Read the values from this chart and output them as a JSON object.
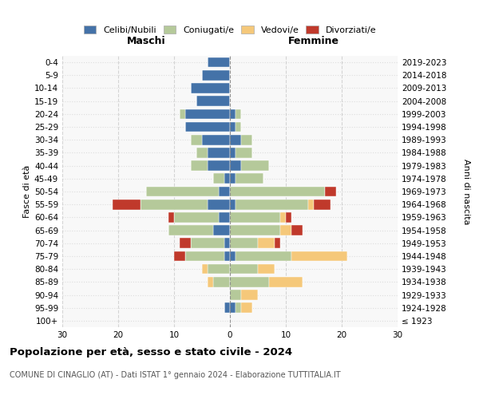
{
  "age_groups": [
    "100+",
    "95-99",
    "90-94",
    "85-89",
    "80-84",
    "75-79",
    "70-74",
    "65-69",
    "60-64",
    "55-59",
    "50-54",
    "45-49",
    "40-44",
    "35-39",
    "30-34",
    "25-29",
    "20-24",
    "15-19",
    "10-14",
    "5-9",
    "0-4"
  ],
  "birth_years": [
    "≤ 1923",
    "1924-1928",
    "1929-1933",
    "1934-1938",
    "1939-1943",
    "1944-1948",
    "1949-1953",
    "1954-1958",
    "1959-1963",
    "1964-1968",
    "1969-1973",
    "1974-1978",
    "1979-1983",
    "1984-1988",
    "1989-1993",
    "1994-1998",
    "1999-2003",
    "2004-2008",
    "2009-2013",
    "2014-2018",
    "2019-2023"
  ],
  "colors": {
    "celibi": "#4472a8",
    "coniugati": "#b5c99a",
    "vedovi": "#f5c87a",
    "divorziati": "#c0392b"
  },
  "maschi": {
    "celibi": [
      0,
      1,
      0,
      0,
      0,
      1,
      1,
      3,
      2,
      4,
      2,
      1,
      4,
      4,
      5,
      8,
      8,
      6,
      7,
      5,
      4
    ],
    "coniugati": [
      0,
      0,
      0,
      3,
      4,
      7,
      6,
      8,
      8,
      12,
      13,
      2,
      3,
      2,
      2,
      0,
      1,
      0,
      0,
      0,
      0
    ],
    "vedovi": [
      0,
      0,
      0,
      1,
      1,
      0,
      0,
      0,
      0,
      0,
      0,
      0,
      0,
      0,
      0,
      0,
      0,
      0,
      0,
      0,
      0
    ],
    "divorziati": [
      0,
      0,
      0,
      0,
      0,
      2,
      2,
      0,
      1,
      5,
      0,
      0,
      0,
      0,
      0,
      0,
      0,
      0,
      0,
      0,
      0
    ]
  },
  "femmine": {
    "nubili": [
      0,
      1,
      0,
      0,
      0,
      1,
      0,
      0,
      0,
      1,
      0,
      1,
      2,
      1,
      2,
      1,
      1,
      0,
      0,
      0,
      0
    ],
    "coniugate": [
      0,
      1,
      2,
      7,
      5,
      10,
      5,
      9,
      9,
      13,
      17,
      5,
      5,
      3,
      2,
      1,
      1,
      0,
      0,
      0,
      0
    ],
    "vedove": [
      0,
      2,
      3,
      6,
      3,
      10,
      3,
      2,
      1,
      1,
      0,
      0,
      0,
      0,
      0,
      0,
      0,
      0,
      0,
      0,
      0
    ],
    "divorziate": [
      0,
      0,
      0,
      0,
      0,
      0,
      1,
      2,
      1,
      3,
      2,
      0,
      0,
      0,
      0,
      0,
      0,
      0,
      0,
      0,
      0
    ]
  },
  "xlim": 30,
  "title": "Popolazione per età, sesso e stato civile - 2024",
  "subtitle": "COMUNE DI CINAGLIO (AT) - Dati ISTAT 1° gennaio 2024 - Elaborazione TUTTITALIA.IT",
  "xlabel_left": "Maschi",
  "xlabel_right": "Femmine",
  "ylabel_left": "Fasce di età",
  "ylabel_right": "Anni di nascita",
  "legend_labels": [
    "Celibi/Nubili",
    "Coniugati/e",
    "Vedovi/e",
    "Divorziati/e"
  ],
  "fig_width": 6.0,
  "fig_height": 5.0,
  "dpi": 100
}
